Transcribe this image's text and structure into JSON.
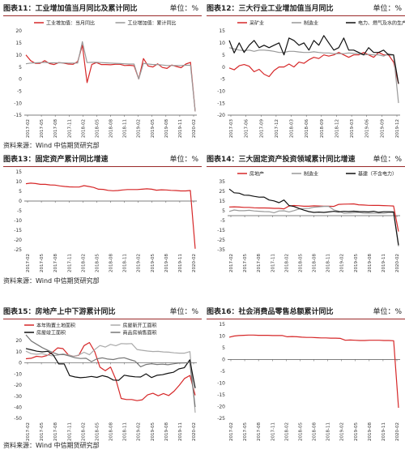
{
  "source_label": "资料来源：Wind  中信期货研究部",
  "chart_data": [
    {
      "type": "line",
      "title": "图表11：工业增加值当月同比及累计同比",
      "unit": "单位：%",
      "ylim": [
        -15,
        20
      ],
      "yticks": [
        -15,
        -10,
        -5,
        0,
        5,
        10,
        15,
        20
      ],
      "zero_line": false,
      "xtick_labels": [
        "2017-02",
        "2017-05",
        "2017-08",
        "2017-11",
        "2018-02",
        "2018-05",
        "2018-08",
        "2018-11",
        "2019-02",
        "2019-05",
        "2019-08",
        "2019-11",
        "2020-02"
      ],
      "legend": "top",
      "series": [
        {
          "name": "工业增加值：当月同比",
          "color": "#d62728",
          "values": [
            10.0,
            7.6,
            6.5,
            6.5,
            7.6,
            6.4,
            6.0,
            6.8,
            6.6,
            6.2,
            6.1,
            7.2,
            14.0,
            -1.5,
            6.0,
            6.8,
            6.0,
            6.0,
            5.9,
            6.1,
            6.1,
            5.6,
            5.7,
            5.5,
            0.0,
            8.5,
            5.4,
            5.0,
            6.3,
            4.8,
            4.4,
            5.8,
            5.2,
            4.7,
            6.2,
            6.9,
            -13.5
          ]
        },
        {
          "name": "工业增加值：累计同比",
          "color": "#999999",
          "values": [
            6.3,
            6.6,
            6.7,
            6.8,
            6.9,
            6.7,
            6.7,
            6.7,
            6.7,
            6.6,
            6.6,
            6.6,
            15.5,
            6.8,
            6.9,
            6.9,
            6.8,
            6.7,
            6.6,
            6.5,
            6.4,
            6.3,
            6.2,
            6.2,
            0.0,
            6.5,
            6.2,
            6.0,
            6.0,
            5.8,
            5.6,
            5.6,
            5.6,
            5.6,
            5.7,
            5.7,
            -13.5
          ]
        }
      ]
    },
    {
      "type": "line",
      "title": "图表12：三大行业工业增加值当月同比",
      "unit": "单位：%",
      "ylim": [
        -20,
        15
      ],
      "yticks": [
        -20,
        -15,
        -10,
        -5,
        0,
        5,
        10,
        15
      ],
      "zero_line": false,
      "xtick_labels": [
        "2017-03",
        "2017-06",
        "2017-09",
        "2017-12",
        "2018-03",
        "2018-06",
        "2018-09",
        "2018-12",
        "2019-03",
        "2019-06",
        "2019-09",
        "2019-12"
      ],
      "legend": "top",
      "series": [
        {
          "name": "采矿业",
          "color": "#d62728",
          "values": [
            -0.4,
            -1.2,
            0.5,
            1.0,
            0.3,
            -2.0,
            -1.0,
            -3.0,
            -4.0,
            -1.5,
            0.0,
            0.0,
            1.2,
            0.0,
            2.0,
            1.5,
            3.0,
            4.0,
            3.5,
            5.0,
            4.5,
            5.0,
            6.0,
            5.0,
            4.0,
            5.0,
            5.0,
            6.0,
            5.0,
            4.0,
            6.0,
            5.0,
            5.0,
            2.0,
            -7.0
          ]
        },
        {
          "name": "制造业",
          "color": "#999999",
          "values": [
            8.0,
            7.5,
            7.0,
            6.8,
            7.0,
            6.5,
            7.0,
            7.0,
            6.8,
            6.5,
            6.0,
            6.0,
            6.5,
            6.5,
            6.2,
            6.0,
            6.0,
            6.3,
            6.0,
            5.8,
            5.8,
            5.5,
            5.5,
            5.5,
            5.8,
            5.6,
            5.5,
            5.0,
            5.2,
            5.0,
            5.0,
            4.5,
            5.5,
            5.0,
            -15.0
          ]
        },
        {
          "name": "电力、燃气及水的生产和供应业",
          "color": "#111111",
          "values": [
            11.0,
            5.8,
            10.0,
            6.0,
            9.0,
            11.0,
            8.0,
            9.0,
            8.0,
            9.0,
            10.0,
            5.0,
            12.0,
            11.0,
            9.0,
            10.0,
            7.0,
            11.0,
            9.0,
            13.0,
            10.0,
            7.0,
            8.0,
            12.0,
            7.0,
            7.0,
            6.0,
            5.0,
            8.0,
            6.0,
            6.0,
            7.0,
            5.0,
            5.0,
            -7.0
          ]
        }
      ]
    },
    {
      "type": "line",
      "title": "图表13：固定资产累计同比增速",
      "unit": "单位：%",
      "ylim": [
        -25,
        15
      ],
      "yticks": [
        -25,
        -20,
        -15,
        -10,
        -5,
        0,
        5,
        10,
        15
      ],
      "zero_line": true,
      "xtick_labels": [
        "2017-02",
        "2017-05",
        "2017-08",
        "2017-11",
        "2018-02",
        "2018-05",
        "2018-08",
        "2018-11",
        "2019-02",
        "2019-05",
        "2019-08",
        "2019-11",
        "2020-02"
      ],
      "legend": "none",
      "series": [
        {
          "name": "",
          "color": "#d62728",
          "values": [
            8.9,
            9.2,
            9.0,
            8.6,
            8.6,
            8.3,
            8.2,
            7.8,
            7.5,
            7.3,
            7.2,
            7.2,
            7.9,
            7.5,
            7.0,
            6.1,
            6.0,
            5.5,
            5.3,
            5.4,
            5.7,
            5.9,
            5.9,
            5.9,
            6.1,
            6.3,
            6.1,
            5.6,
            5.8,
            5.7,
            5.5,
            5.4,
            5.2,
            5.2,
            5.4,
            -24.5
          ]
        }
      ]
    },
    {
      "type": "line",
      "title": "图表14：三大固定资产投资领域累计同比增速",
      "unit": "单位：%",
      "ylim": [
        -35,
        35
      ],
      "yticks": [
        -35,
        -25,
        -15,
        -5,
        5,
        15,
        25,
        35
      ],
      "zero_line": true,
      "xtick_labels": [
        "2017-02",
        "2017-05",
        "2017-08",
        "2017-11",
        "2018-02",
        "2018-05",
        "2018-08",
        "2018-11",
        "2019-02",
        "2019-05",
        "2019-08",
        "2019-11",
        "2020-02"
      ],
      "legend": "top",
      "series": [
        {
          "name": "房地产",
          "color": "#d62728",
          "values": [
            8.9,
            9.1,
            8.8,
            8.5,
            8.5,
            8.1,
            7.9,
            7.9,
            7.8,
            7.5,
            7.5,
            7.0,
            9.9,
            10.4,
            10.2,
            9.7,
            9.7,
            10.1,
            9.9,
            9.7,
            9.7,
            9.5,
            11.6,
            11.8,
            11.9,
            12.1,
            11.2,
            10.9,
            10.6,
            10.5,
            10.5,
            10.3,
            10.2,
            9.9,
            -16.3
          ]
        },
        {
          "name": "制造业",
          "color": "#999999",
          "values": [
            4.3,
            5.8,
            5.1,
            5.1,
            5.5,
            4.8,
            4.5,
            4.2,
            4.1,
            3.0,
            4.8,
            5.0,
            3.8,
            5.2,
            6.8,
            7.3,
            7.5,
            8.7,
            9.1,
            9.5,
            9.5,
            5.9,
            4.6,
            2.5,
            2.7,
            3.0,
            3.3,
            2.6,
            2.5,
            2.6,
            2.6,
            2.5,
            3.1,
            3.1,
            -31.5
          ]
        },
        {
          "name": "基建（不含电力）",
          "color": "#111111",
          "values": [
            27.3,
            23.5,
            23.1,
            21.1,
            20.9,
            19.8,
            19.0,
            19.1,
            16.1,
            15.2,
            13.3,
            16.1,
            10.4,
            9.4,
            7.4,
            5.7,
            4.2,
            3.3,
            3.7,
            3.3,
            3.8,
            4.4,
            3.8,
            4.4,
            4.2,
            4.6,
            4.2,
            4.1,
            3.8,
            4.5,
            3.4,
            4.0,
            4.0,
            3.8,
            -30.3
          ]
        }
      ]
    },
    {
      "type": "line",
      "title": "图表15：房地产上中下游累计同比",
      "unit": "单位：%",
      "ylim": [
        -50,
        20
      ],
      "yticks": [
        -50,
        -40,
        -30,
        -20,
        -10,
        0,
        10,
        20
      ],
      "zero_line": true,
      "xtick_labels": [
        "2017-02",
        "2017-05",
        "2017-08",
        "2017-11",
        "2018-02",
        "2018-05",
        "2018-08",
        "2018-11",
        "2019-02",
        "2019-05",
        "2019-08",
        "2019-11",
        "2020-02"
      ],
      "legend": "top-2x2",
      "series": [
        {
          "name": "本年购置土地面积",
          "color": "#d62728",
          "values": [
            3.6,
            4.0,
            5.8,
            5.3,
            6.5,
            9.3,
            13.4,
            12.7,
            7.1,
            5.7,
            6.7,
            15.4,
            18.2,
            10.0,
            -4.0,
            -7.2,
            -3.9,
            -15.0,
            -32.1,
            -33.1,
            -33.1,
            -34.1,
            -33.3,
            -28.9,
            -27.5,
            -29.7,
            -27.7,
            -29.5,
            -25.6,
            -20.2,
            -14.1,
            -11.4,
            -29.3
          ]
        },
        {
          "name": "房屋新开工面积",
          "color": "#aaaaaa",
          "values": [
            10.4,
            8.2,
            7.6,
            8.2,
            7.0,
            6.2,
            6.9,
            7.9,
            7.0,
            5.7,
            7.0,
            9.4,
            7.2,
            11.8,
            15.5,
            14.1,
            16.5,
            15.3,
            17.2,
            17.0,
            17.2,
            11.9,
            11.2,
            10.5,
            10.1,
            10.2,
            9.7,
            9.5,
            8.9,
            8.6,
            8.6,
            10.0,
            -44.9
          ]
        },
        {
          "name": "房屋竣工面积",
          "color": "#111111",
          "values": [
            12.8,
            11.6,
            10.4,
            9.8,
            10.3,
            7.1,
            -1.1,
            -1.0,
            -11.6,
            -12.8,
            -13.5,
            -13.0,
            -12.3,
            -13.2,
            -11.6,
            -12.8,
            -15.6,
            -15.8,
            -11.2,
            -12.1,
            -12.7,
            -12.8,
            -10.0,
            -13.3,
            -11.3,
            -10.8,
            -9.5,
            -8.6,
            -5.5,
            -4.5,
            2.6,
            -22.9
          ]
        },
        {
          "name": "商品房销售面积",
          "color": "#777777",
          "values": [
            25.1,
            19.5,
            16.5,
            13.6,
            11.2,
            9.0,
            7.3,
            7.3,
            6.0,
            4.5,
            3.8,
            4.0,
            1.0,
            3.5,
            4.4,
            3.3,
            2.9,
            4.0,
            4.5,
            2.9,
            1.4,
            -3.6,
            -1.6,
            -0.9,
            -1.6,
            -1.3,
            -1.8,
            -1.0,
            -0.3,
            -0.1,
            0.2,
            -39.9
          ]
        }
      ]
    },
    {
      "type": "line",
      "title": "图表16：社会消费品零售总额累计同比",
      "unit": "单位：%",
      "ylim": [
        -25,
        15
      ],
      "yticks": [
        -25,
        -20,
        -15,
        -10,
        -5,
        0,
        5,
        10,
        15
      ],
      "zero_line": true,
      "xtick_labels": [
        "2017-02",
        "2017-05",
        "2017-08",
        "2017-11",
        "2018-02",
        "2018-05",
        "2018-08",
        "2018-11",
        "2019-02",
        "2019-05",
        "2019-08",
        "2019-11",
        "2020-02"
      ],
      "legend": "none",
      "series": [
        {
          "name": "",
          "color": "#d62728",
          "values": [
            9.5,
            10.0,
            10.2,
            10.3,
            10.4,
            10.4,
            10.3,
            10.3,
            10.3,
            10.2,
            10.2,
            10.2,
            9.7,
            9.8,
            9.7,
            9.5,
            9.4,
            9.4,
            9.3,
            9.2,
            9.2,
            9.1,
            9.1,
            9.0,
            8.2,
            8.3,
            8.2,
            8.1,
            8.1,
            8.2,
            8.2,
            8.2,
            8.1,
            8.1,
            8.0,
            -20.5
          ]
        }
      ]
    }
  ]
}
